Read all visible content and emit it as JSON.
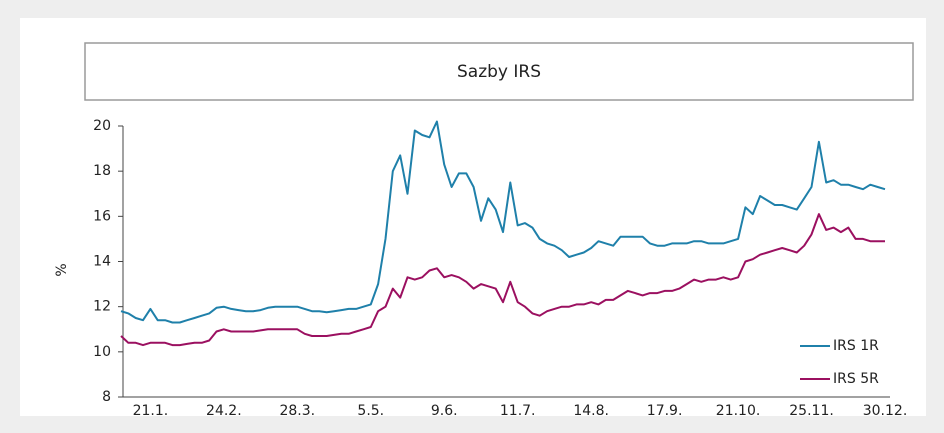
{
  "chart_data": {
    "type": "line",
    "title": "Sazby IRS",
    "ylabel": "%",
    "categories": [
      null,
      null,
      null,
      null,
      "21.1.",
      null,
      null,
      null,
      null,
      null,
      null,
      null,
      null,
      null,
      "24.2.",
      null,
      null,
      null,
      null,
      null,
      null,
      null,
      null,
      null,
      "28.3.",
      null,
      null,
      null,
      null,
      null,
      null,
      null,
      null,
      null,
      "5.5.",
      null,
      null,
      null,
      null,
      null,
      null,
      null,
      null,
      null,
      "9.6.",
      null,
      null,
      null,
      null,
      null,
      null,
      null,
      null,
      null,
      "11.7.",
      null,
      null,
      null,
      null,
      null,
      null,
      null,
      null,
      null,
      "14.8.",
      null,
      null,
      null,
      null,
      null,
      null,
      null,
      null,
      null,
      "17.9.",
      null,
      null,
      null,
      null,
      null,
      null,
      null,
      null,
      null,
      "21.10.",
      null,
      null,
      null,
      null,
      null,
      null,
      null,
      null,
      null,
      "25.11.",
      null,
      null,
      null,
      null,
      null,
      null,
      null,
      null,
      null,
      "30.12."
    ],
    "series": [
      {
        "name": "IRS 1R",
        "color": "#1f80aa",
        "values": [
          11.8,
          11.7,
          11.5,
          11.4,
          11.9,
          11.4,
          11.4,
          11.3,
          11.3,
          11.4,
          11.5,
          11.6,
          11.7,
          11.95,
          12.0,
          11.9,
          11.85,
          11.8,
          11.8,
          11.85,
          11.95,
          12.0,
          12.0,
          12.0,
          12.0,
          11.9,
          11.8,
          11.8,
          11.75,
          11.8,
          11.85,
          11.9,
          11.9,
          12.0,
          12.1,
          13.0,
          15.0,
          18.0,
          18.7,
          17.0,
          19.8,
          19.6,
          19.5,
          20.2,
          18.3,
          17.3,
          17.9,
          17.9,
          17.3,
          15.8,
          16.8,
          16.3,
          15.3,
          17.5,
          15.6,
          15.7,
          15.5,
          15.0,
          14.8,
          14.7,
          14.5,
          14.2,
          14.3,
          14.4,
          14.6,
          14.9,
          14.8,
          14.7,
          15.1,
          15.1,
          15.1,
          15.1,
          14.8,
          14.7,
          14.7,
          14.8,
          14.8,
          14.8,
          14.9,
          14.9,
          14.8,
          14.8,
          14.8,
          14.9,
          15.0,
          16.4,
          16.1,
          16.9,
          16.7,
          16.5,
          16.5,
          16.4,
          16.3,
          16.8,
          17.3,
          19.3,
          17.5,
          17.6,
          17.4,
          17.4,
          17.3,
          17.2,
          17.4,
          17.3,
          17.2
        ]
      },
      {
        "name": "IRS 5R",
        "color": "#9b1060",
        "values": [
          10.7,
          10.4,
          10.4,
          10.3,
          10.4,
          10.4,
          10.4,
          10.3,
          10.3,
          10.35,
          10.4,
          10.4,
          10.5,
          10.9,
          11.0,
          10.9,
          10.9,
          10.9,
          10.9,
          10.95,
          11.0,
          11.0,
          11.0,
          11.0,
          11.0,
          10.8,
          10.7,
          10.7,
          10.7,
          10.75,
          10.8,
          10.8,
          10.9,
          11.0,
          11.1,
          11.8,
          12.0,
          12.8,
          12.4,
          13.3,
          13.2,
          13.3,
          13.6,
          13.7,
          13.3,
          13.4,
          13.3,
          13.1,
          12.8,
          13.0,
          12.9,
          12.8,
          12.2,
          13.1,
          12.2,
          12.0,
          11.7,
          11.6,
          11.8,
          11.9,
          12.0,
          12.0,
          12.1,
          12.1,
          12.2,
          12.1,
          12.3,
          12.3,
          12.5,
          12.7,
          12.6,
          12.5,
          12.6,
          12.6,
          12.7,
          12.7,
          12.8,
          13.0,
          13.2,
          13.1,
          13.2,
          13.2,
          13.3,
          13.2,
          13.3,
          14.0,
          14.1,
          14.3,
          14.4,
          14.5,
          14.6,
          14.5,
          14.4,
          14.7,
          15.2,
          16.1,
          15.4,
          15.5,
          15.3,
          15.5,
          15.0,
          15.0,
          14.9,
          14.9,
          14.9
        ]
      }
    ],
    "ylim": [
      8,
      20
    ],
    "yticks": [
      8,
      10,
      12,
      14,
      16,
      18,
      20
    ],
    "grid": false,
    "legend": "lower right"
  }
}
